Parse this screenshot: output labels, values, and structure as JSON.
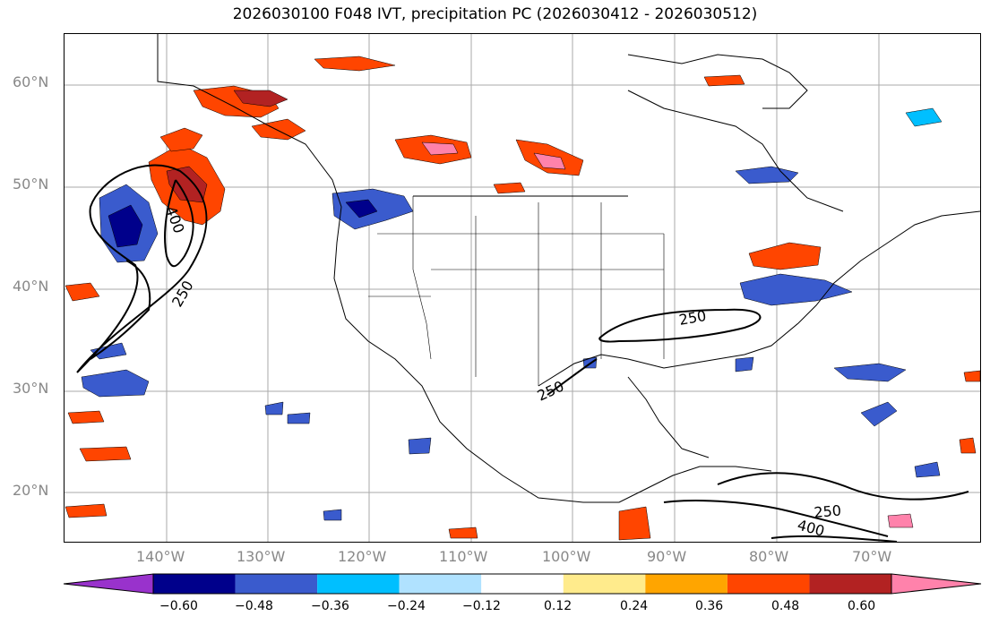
{
  "title": "2026030100 F048 IVT, precipitation PC (2026030412 - 2026030512)",
  "lat_labels": [
    "60°N",
    "50°N",
    "40°N",
    "30°N",
    "20°N"
  ],
  "lon_labels": [
    "140°W",
    "130°W",
    "120°W",
    "110°W",
    "100°W",
    "90°W",
    "80°W",
    "70°W"
  ],
  "contour_labels": [
    "400",
    "250",
    "250",
    "250",
    "250",
    "400"
  ],
  "colorbar": {
    "ticks": [
      "−0.60",
      "−0.48",
      "−0.36",
      "−0.24",
      "−0.12",
      "0.12",
      "0.24",
      "0.36",
      "0.48",
      "0.60"
    ],
    "colors": [
      "#9932cc",
      "#00008b",
      "#3a5bcd",
      "#00bfff",
      "#b0e2ff",
      "#ffffff",
      "#ffeb8c",
      "#ffa500",
      "#ff4500",
      "#b22222",
      "#ff82ab"
    ]
  }
}
